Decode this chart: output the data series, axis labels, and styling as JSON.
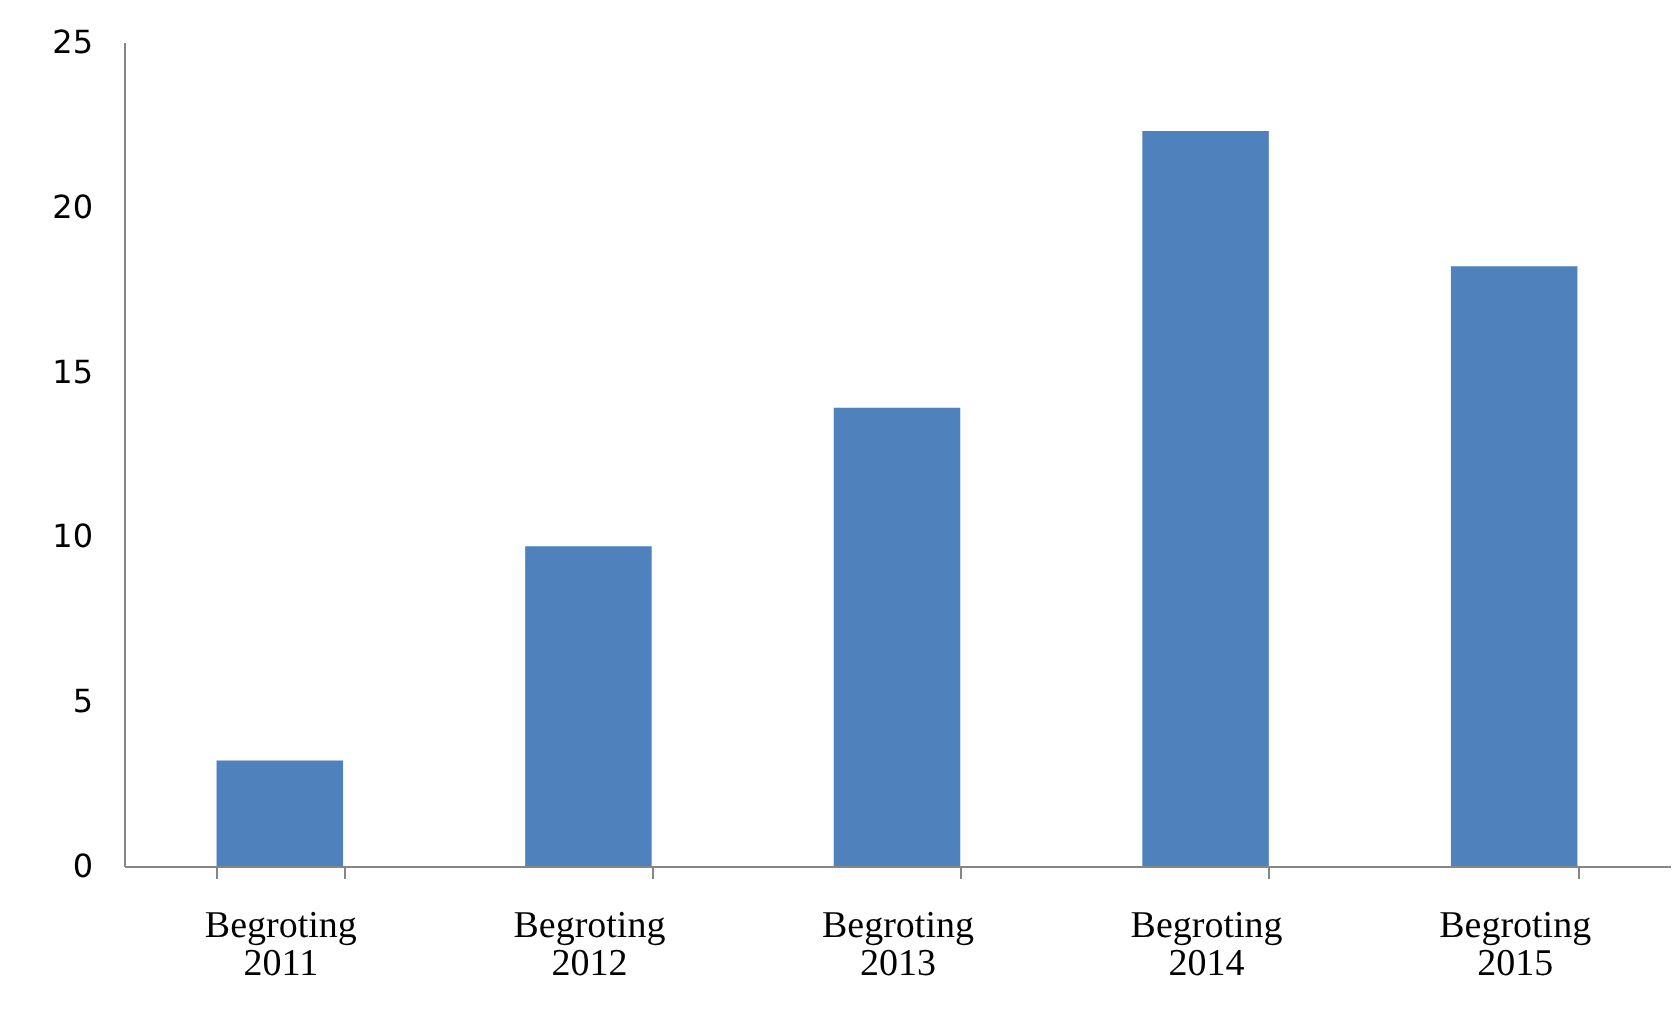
{
  "chart_data": {
    "type": "bar",
    "categories": [
      "Begroting 2011",
      "Begroting 2012",
      "Begroting 2013",
      "Begroting 2014",
      "Begroting 2015"
    ],
    "values": [
      3.2,
      9.7,
      13.9,
      22.3,
      18.2
    ],
    "color": "#4f81bd",
    "ylim": [
      0,
      25
    ],
    "yticks": [
      0,
      5,
      10,
      15,
      20,
      25
    ],
    "grid": false
  }
}
